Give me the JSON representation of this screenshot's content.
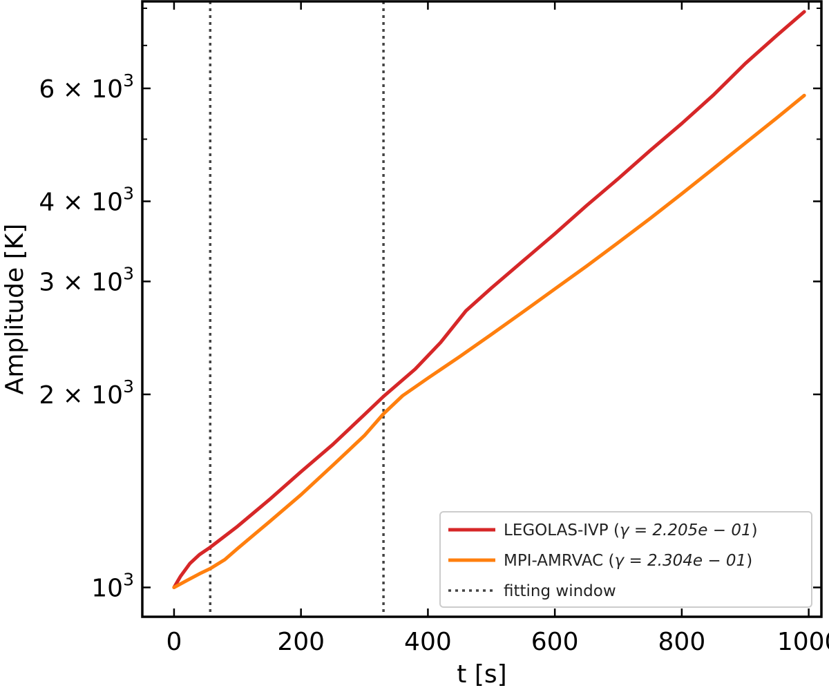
{
  "chart_data": {
    "type": "line",
    "xlabel": "t [s]",
    "ylabel": "Amplitude [K]",
    "x_range": [
      -50,
      1020
    ],
    "y_range": [
      900,
      8200
    ],
    "y_scale": "log",
    "x_ticks": [
      0,
      200,
      400,
      600,
      800,
      1000
    ],
    "y_ticks": [
      {
        "value": 1000,
        "base": "10",
        "exp": "3",
        "mantissa": ""
      },
      {
        "value": 2000,
        "base": "10",
        "exp": "3",
        "mantissa": "2"
      },
      {
        "value": 3000,
        "base": "10",
        "exp": "3",
        "mantissa": "3"
      },
      {
        "value": 4000,
        "base": "10",
        "exp": "3",
        "mantissa": "4"
      },
      {
        "value": 6000,
        "base": "10",
        "exp": "3",
        "mantissa": "6"
      }
    ],
    "y_minor_ticks": [
      5000,
      7000,
      8000
    ],
    "fitting_window": [
      57,
      330
    ],
    "series": [
      {
        "name": "LEGOLAS-IVP",
        "legend_prefix": "LEGOLAS-IVP (",
        "legend_math": "γ = 2.205e − 01",
        "legend_suffix": ")",
        "color": "#d62728",
        "points": [
          [
            0,
            1000
          ],
          [
            10,
            1040
          ],
          [
            25,
            1090
          ],
          [
            40,
            1125
          ],
          [
            57,
            1155
          ],
          [
            100,
            1245
          ],
          [
            150,
            1370
          ],
          [
            200,
            1515
          ],
          [
            250,
            1670
          ],
          [
            300,
            1860
          ],
          [
            330,
            1985
          ],
          [
            380,
            2190
          ],
          [
            420,
            2410
          ],
          [
            460,
            2700
          ],
          [
            500,
            2930
          ],
          [
            550,
            3230
          ],
          [
            600,
            3560
          ],
          [
            650,
            3940
          ],
          [
            700,
            4340
          ],
          [
            750,
            4800
          ],
          [
            800,
            5290
          ],
          [
            850,
            5860
          ],
          [
            900,
            6560
          ],
          [
            950,
            7260
          ],
          [
            993,
            7900
          ]
        ]
      },
      {
        "name": "MPI-AMRVAC",
        "legend_prefix": "MPI-AMRVAC (",
        "legend_math": "γ = 2.304e − 01",
        "legend_suffix": ")",
        "color": "#ff7f0e",
        "points": [
          [
            0,
            1000
          ],
          [
            20,
            1025
          ],
          [
            40,
            1050
          ],
          [
            57,
            1070
          ],
          [
            80,
            1105
          ],
          [
            100,
            1150
          ],
          [
            150,
            1265
          ],
          [
            200,
            1395
          ],
          [
            250,
            1550
          ],
          [
            300,
            1725
          ],
          [
            330,
            1865
          ],
          [
            360,
            1990
          ],
          [
            400,
            2120
          ],
          [
            450,
            2290
          ],
          [
            500,
            2480
          ],
          [
            550,
            2690
          ],
          [
            600,
            2920
          ],
          [
            650,
            3170
          ],
          [
            700,
            3450
          ],
          [
            750,
            3760
          ],
          [
            800,
            4110
          ],
          [
            850,
            4500
          ],
          [
            900,
            4930
          ],
          [
            950,
            5400
          ],
          [
            993,
            5850
          ]
        ]
      }
    ],
    "legend": {
      "position": "lower-right",
      "window_label": "fitting window"
    }
  }
}
